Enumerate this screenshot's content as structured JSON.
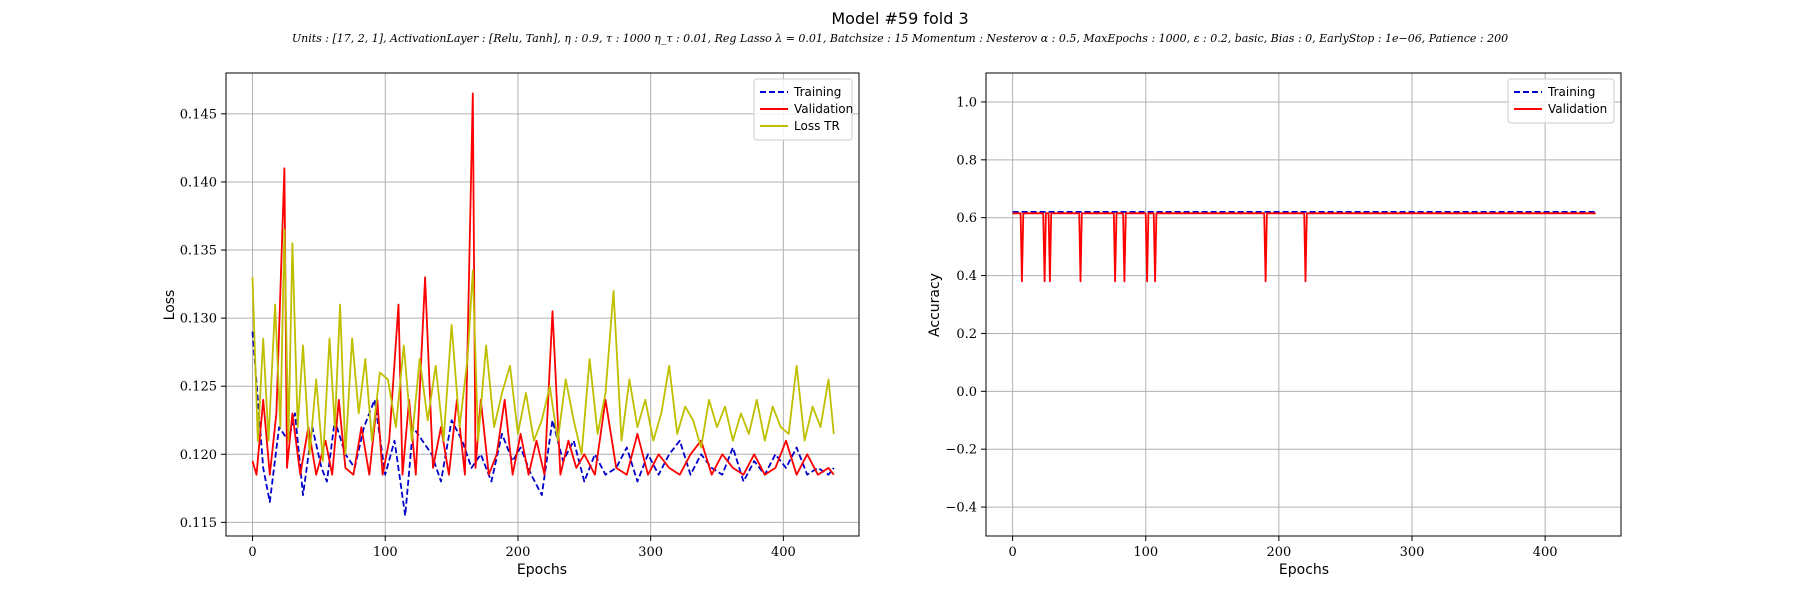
{
  "figure": {
    "title": "Model #59 fold 3",
    "subtitle": "Units : [17, 2, 1], ActivationLayer : [Relu, Tanh], η : 0.9, τ : 1000 η_τ : 0.01, Reg Lasso λ = 0.01, Batchsize : 15 Momentum : Nesterov α : 0.5, MaxEpochs : 1000, ε : 0.2, basic, Bias : 0, EarlyStop : 1e−06, Patience : 200"
  },
  "chart_data": [
    {
      "type": "line",
      "xlabel": "Epochs",
      "ylabel": "Loss",
      "xlim": [
        -20,
        457
      ],
      "ylim": [
        0.114,
        0.148
      ],
      "xticks": [
        "0",
        "100",
        "200",
        "300",
        "400"
      ],
      "xtick_values": [
        0,
        100,
        200,
        300,
        400
      ],
      "yticks": [
        "0.115",
        "0.120",
        "0.125",
        "0.130",
        "0.135",
        "0.140",
        "0.145"
      ],
      "ytick_values": [
        0.115,
        0.12,
        0.125,
        0.13,
        0.135,
        0.14,
        0.145
      ],
      "grid": true,
      "legend": "top-right",
      "series": [
        {
          "name": "Training",
          "color": "#0000cc",
          "style": "dashed",
          "x": [
            0,
            8,
            13,
            20,
            27,
            32,
            38,
            45,
            52,
            56,
            62,
            70,
            77,
            84,
            92,
            100,
            107,
            115,
            121,
            128,
            135,
            142,
            150,
            158,
            165,
            172,
            180,
            188,
            196,
            202,
            210,
            218,
            226,
            234,
            242,
            250,
            258,
            266,
            274,
            282,
            290,
            298,
            306,
            314,
            322,
            330,
            338,
            346,
            354,
            362,
            370,
            378,
            386,
            394,
            402,
            410,
            418,
            426,
            434,
            438
          ],
          "values": [
            0.129,
            0.119,
            0.1165,
            0.122,
            0.121,
            0.123,
            0.117,
            0.122,
            0.119,
            0.118,
            0.1225,
            0.12,
            0.119,
            0.122,
            0.124,
            0.1185,
            0.121,
            0.1155,
            0.122,
            0.121,
            0.12,
            0.118,
            0.1225,
            0.121,
            0.119,
            0.12,
            0.118,
            0.1215,
            0.1195,
            0.1205,
            0.1185,
            0.117,
            0.1225,
            0.1195,
            0.121,
            0.118,
            0.12,
            0.1185,
            0.119,
            0.1205,
            0.118,
            0.12,
            0.1185,
            0.12,
            0.121,
            0.1185,
            0.12,
            0.119,
            0.1185,
            0.1205,
            0.118,
            0.1195,
            0.1185,
            0.12,
            0.119,
            0.1205,
            0.1185,
            0.119,
            0.1185,
            0.119
          ]
        },
        {
          "name": "Validation",
          "color": "#ff0000",
          "style": "solid",
          "x": [
            0,
            3,
            8,
            13,
            18,
            24,
            26,
            30,
            36,
            42,
            48,
            55,
            60,
            65,
            70,
            76,
            82,
            88,
            94,
            98,
            103,
            110,
            113,
            118,
            123,
            130,
            136,
            142,
            148,
            154,
            160,
            166,
            168,
            172,
            178,
            184,
            190,
            196,
            202,
            208,
            214,
            220,
            226,
            232,
            238,
            244,
            250,
            258,
            266,
            274,
            282,
            290,
            298,
            306,
            314,
            322,
            330,
            338,
            346,
            354,
            362,
            370,
            378,
            386,
            394,
            402,
            410,
            418,
            426,
            434,
            438
          ],
          "values": [
            0.1195,
            0.1185,
            0.124,
            0.1185,
            0.123,
            0.141,
            0.119,
            0.123,
            0.1185,
            0.122,
            0.1185,
            0.121,
            0.1185,
            0.124,
            0.119,
            0.1185,
            0.122,
            0.1185,
            0.124,
            0.1185,
            0.121,
            0.131,
            0.1185,
            0.124,
            0.1185,
            0.133,
            0.119,
            0.122,
            0.1185,
            0.124,
            0.1185,
            0.1465,
            0.119,
            0.124,
            0.1185,
            0.12,
            0.124,
            0.1185,
            0.1215,
            0.1185,
            0.121,
            0.1185,
            0.1305,
            0.1185,
            0.121,
            0.119,
            0.12,
            0.1185,
            0.124,
            0.119,
            0.1185,
            0.1215,
            0.1185,
            0.12,
            0.119,
            0.1185,
            0.12,
            0.121,
            0.1185,
            0.12,
            0.119,
            0.1185,
            0.12,
            0.1185,
            0.119,
            0.121,
            0.1185,
            0.12,
            0.1185,
            0.119,
            0.1185
          ]
        },
        {
          "name": "Loss TR",
          "color": "#bfbf00",
          "style": "solid",
          "x": [
            0,
            4,
            8,
            12,
            17,
            21,
            24,
            27,
            30,
            34,
            38,
            43,
            48,
            53,
            58,
            62,
            66,
            70,
            75,
            80,
            85,
            90,
            96,
            102,
            108,
            114,
            120,
            126,
            132,
            138,
            144,
            150,
            156,
            162,
            166,
            170,
            176,
            182,
            188,
            194,
            200,
            206,
            212,
            218,
            224,
            230,
            236,
            242,
            248,
            254,
            260,
            266,
            272,
            278,
            284,
            290,
            296,
            302,
            308,
            314,
            320,
            326,
            332,
            338,
            344,
            350,
            356,
            362,
            368,
            374,
            380,
            386,
            392,
            398,
            404,
            410,
            416,
            422,
            428,
            434,
            438
          ],
          "values": [
            0.133,
            0.121,
            0.1285,
            0.121,
            0.131,
            0.122,
            0.1365,
            0.121,
            0.1355,
            0.122,
            0.128,
            0.12,
            0.1255,
            0.1195,
            0.1285,
            0.122,
            0.131,
            0.12,
            0.1285,
            0.123,
            0.127,
            0.121,
            0.126,
            0.1255,
            0.122,
            0.128,
            0.121,
            0.127,
            0.1225,
            0.1265,
            0.121,
            0.1295,
            0.122,
            0.127,
            0.1335,
            0.121,
            0.128,
            0.122,
            0.1245,
            0.1265,
            0.1215,
            0.1245,
            0.121,
            0.1225,
            0.125,
            0.121,
            0.1255,
            0.1225,
            0.12,
            0.127,
            0.1215,
            0.1245,
            0.132,
            0.121,
            0.1255,
            0.122,
            0.124,
            0.121,
            0.123,
            0.1265,
            0.1215,
            0.1235,
            0.1225,
            0.1205,
            0.124,
            0.122,
            0.1235,
            0.121,
            0.123,
            0.1215,
            0.124,
            0.121,
            0.1235,
            0.122,
            0.1215,
            0.1265,
            0.121,
            0.1235,
            0.122,
            0.1255,
            0.1215
          ]
        }
      ]
    },
    {
      "type": "line",
      "xlabel": "Epochs",
      "ylabel": "Accuracy",
      "xlim": [
        -20,
        457
      ],
      "ylim": [
        -0.5,
        1.1
      ],
      "xticks": [
        "0",
        "100",
        "200",
        "300",
        "400"
      ],
      "xtick_values": [
        0,
        100,
        200,
        300,
        400
      ],
      "yticks": [
        "−0.4",
        "−0.2",
        "0.0",
        "0.2",
        "0.4",
        "0.6",
        "0.8",
        "1.0"
      ],
      "ytick_values": [
        -0.4,
        -0.2,
        0.0,
        0.2,
        0.4,
        0.6,
        0.8,
        1.0
      ],
      "grid": true,
      "legend": "top-right",
      "series": [
        {
          "name": "Training",
          "color": "#0000cc",
          "style": "dashed",
          "x": [
            0,
            438
          ],
          "values": [
            0.62,
            0.62
          ]
        },
        {
          "name": "Validation",
          "color": "#ff0000",
          "style": "solid",
          "x": [
            0,
            6,
            7,
            8,
            23,
            24,
            25,
            27,
            28,
            29,
            50,
            51,
            52,
            76,
            77,
            78,
            83,
            84,
            85,
            100,
            101,
            102,
            106,
            107,
            108,
            189,
            190,
            191,
            219,
            220,
            221,
            438
          ],
          "values": [
            0.615,
            0.615,
            0.38,
            0.615,
            0.615,
            0.38,
            0.615,
            0.615,
            0.38,
            0.615,
            0.615,
            0.38,
            0.615,
            0.615,
            0.38,
            0.615,
            0.615,
            0.38,
            0.615,
            0.615,
            0.38,
            0.615,
            0.615,
            0.38,
            0.615,
            0.615,
            0.38,
            0.615,
            0.615,
            0.38,
            0.615,
            0.615
          ]
        }
      ]
    }
  ]
}
